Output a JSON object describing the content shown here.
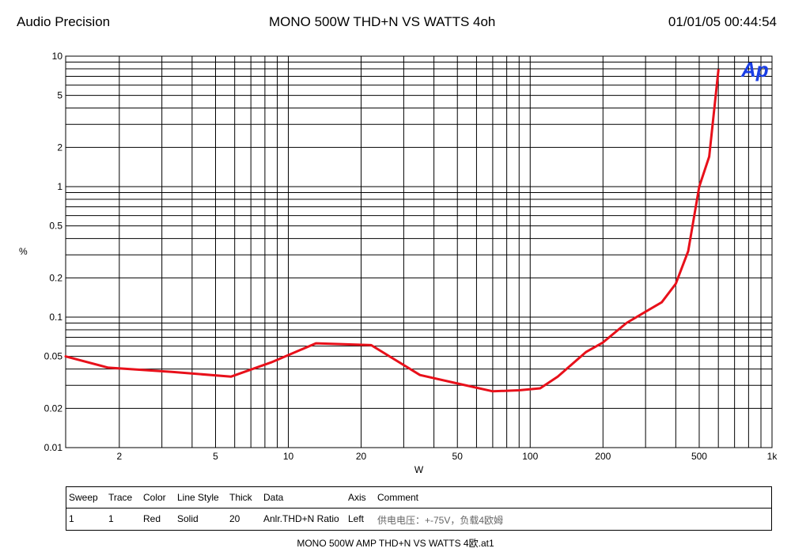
{
  "header": {
    "left": "Audio Precision",
    "center": "MONO 500W THD+N  VS   WATTS 4oh",
    "right": "01/01/05 00:44:54"
  },
  "logo": {
    "text": "Ap",
    "color": "#1a3ee6"
  },
  "chart_data": {
    "type": "line",
    "xscale": "log",
    "yscale": "log",
    "xlim": [
      1.2,
      1000
    ],
    "ylim": [
      0.01,
      10
    ],
    "xlabel": "W",
    "ylabel": "%",
    "grid": true,
    "x_ticks": [
      {
        "v": 2,
        "label": "2"
      },
      {
        "v": 5,
        "label": "5"
      },
      {
        "v": 10,
        "label": "10"
      },
      {
        "v": 20,
        "label": "20"
      },
      {
        "v": 50,
        "label": "50"
      },
      {
        "v": 100,
        "label": "100"
      },
      {
        "v": 200,
        "label": "200"
      },
      {
        "v": 500,
        "label": "500"
      },
      {
        "v": 1000,
        "label": "1k"
      }
    ],
    "y_ticks": [
      {
        "v": 0.01,
        "label": "0.01"
      },
      {
        "v": 0.02,
        "label": "0.02"
      },
      {
        "v": 0.05,
        "label": "0.05"
      },
      {
        "v": 0.1,
        "label": "0.1"
      },
      {
        "v": 0.2,
        "label": "0.2"
      },
      {
        "v": 0.5,
        "label": "0.5"
      },
      {
        "v": 1,
        "label": "1"
      },
      {
        "v": 2,
        "label": "2"
      },
      {
        "v": 5,
        "label": "5"
      },
      {
        "v": 10,
        "label": "10"
      }
    ],
    "series": [
      {
        "color": "#e8101a",
        "x": [
          1.2,
          1.8,
          3.3,
          5.8,
          8.5,
          13,
          22,
          35,
          50,
          70,
          90,
          110,
          130,
          170,
          200,
          250,
          300,
          350,
          400,
          450,
          500,
          550,
          600
        ],
        "y": [
          0.05,
          0.041,
          0.038,
          0.035,
          0.045,
          0.063,
          0.061,
          0.036,
          0.031,
          0.027,
          0.0275,
          0.0285,
          0.035,
          0.054,
          0.064,
          0.09,
          0.11,
          0.13,
          0.18,
          0.32,
          1.0,
          1.7,
          7.8
        ]
      }
    ]
  },
  "legend_table": {
    "headers": [
      "Sweep",
      "Trace",
      "Color",
      "Line Style",
      "Thick",
      "Data",
      "Axis",
      "Comment"
    ],
    "row": [
      "1",
      "1",
      "Red",
      "Solid",
      "20",
      "Anlr.THD+N Ratio",
      "Left",
      "供电电压：+-75V，负载4欧姆"
    ]
  },
  "footer": "MONO 500W AMP THD+N VS WATTS 4欧.at1"
}
